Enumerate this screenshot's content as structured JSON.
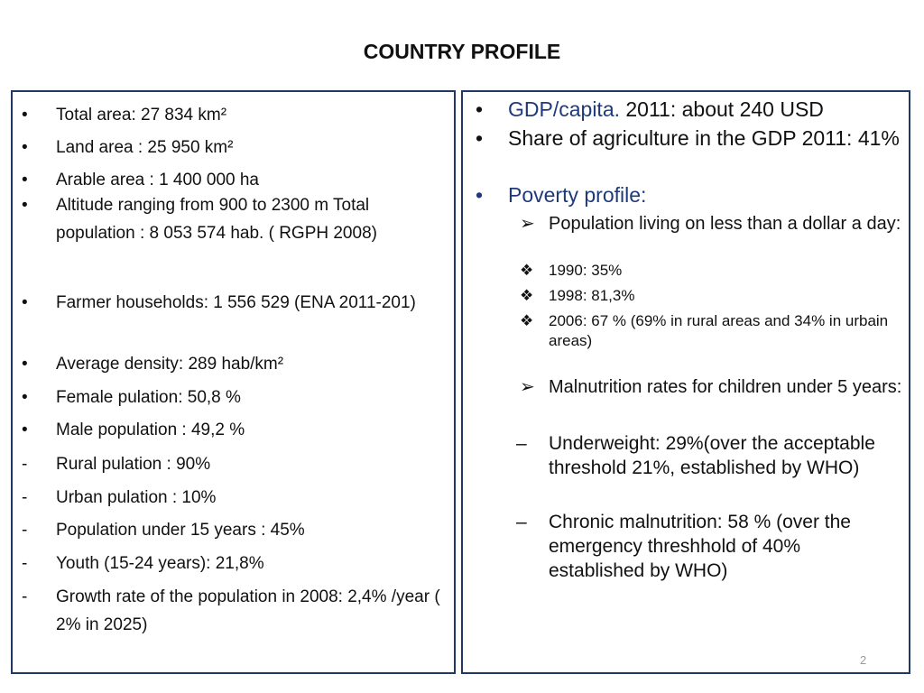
{
  "title": "COUNTRY PROFILE",
  "left": [
    {
      "m": "•",
      "t": "Total area: 27 834 km²"
    },
    {
      "m": "•",
      "t": "Land area : 25 950 km²"
    },
    {
      "m": "•",
      "t": "Arable area : 1 400 000 ha"
    },
    {
      "m": "•",
      "t": "Altitude ranging from 900 to 2300 m Total population : 8 053 574 hab. ( RGPH 2008)"
    },
    {
      "m": "•",
      "t": "Farmer households: 1 556 529 (ENA 2011-201)"
    },
    {
      "m": "•",
      "t": "Average density: 289 hab/km²"
    },
    {
      "m": "•",
      "t": "Female pulation:  50,8  %"
    },
    {
      "m": "•",
      "t": "Male population :  49,2 %"
    },
    {
      "m": "-",
      "t": "Rural pulation :  90%"
    },
    {
      "m": "-",
      "t": "Urban pulation : 10%"
    },
    {
      "m": "-",
      "t": "Population under 15 years : 45%"
    },
    {
      "m": "-",
      "t": "Youth (15-24 years): 21,8%"
    },
    {
      "m": "-",
      "t": "Growth rate of the population in 2008: 2,4% /year ( 2% in 2025)"
    }
  ],
  "right": {
    "gdp_label": "GDP/capita.",
    "gdp_value": " 2011: about 240 USD",
    "share": "Share of agriculture in the GDP 2011: 41%",
    "poverty": "Poverty profile:",
    "dollar": "Population living on less than a dollar a day:",
    "y1990": "1990: 35%",
    "y1998": "1998: 81,3%",
    "y2006": "2006: 67 % (69% in rural areas and 34% in urbain areas)",
    "malnutrition": "Malnutrition rates  for children under 5 years:",
    "underweight": "Underweight: 29%(over  the acceptable threshold 21%, established by WHO)",
    "chronic": "Chronic malnutrition: 58 % (over the emergency threshhold of 40% established by WHO)"
  },
  "page_number": "2"
}
